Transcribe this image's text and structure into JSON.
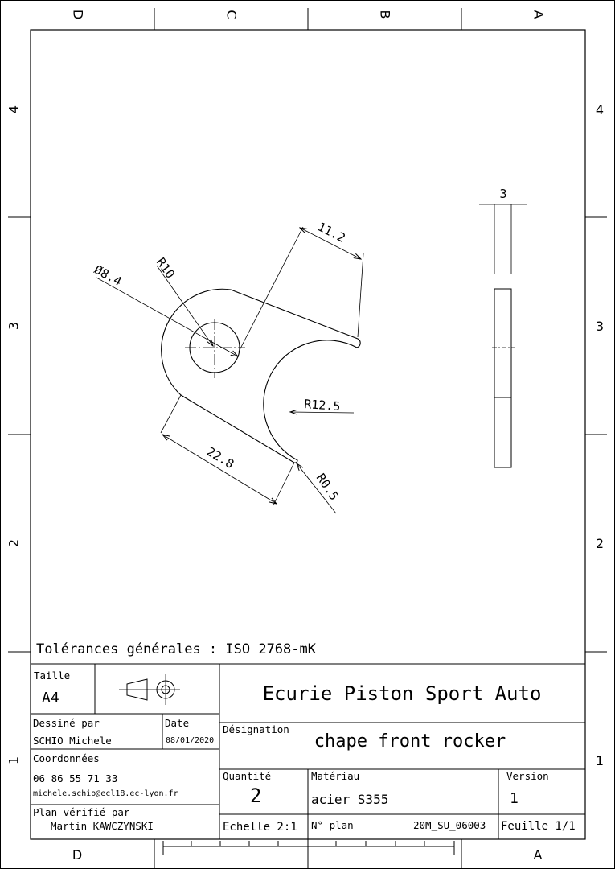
{
  "zones": {
    "columns_top": [
      "D",
      "C",
      "B",
      "A"
    ],
    "rows": [
      "4",
      "3",
      "2",
      "1"
    ],
    "columns_bottom": [
      "D",
      "A"
    ]
  },
  "dimensions": {
    "diameter": "Ø8.4",
    "radius_top": "R10",
    "width_top": "11.2",
    "radius_arc": "R12.5",
    "length_bottom": "22.8",
    "radius_corner": "R0.5",
    "thickness": "3"
  },
  "tolerances": "Tolérances générales : ISO 2768-mK",
  "title_block": {
    "size_label": "Taille",
    "size_value": "A4",
    "company": "Ecurie Piston Sport Auto",
    "drawn_by_label": "Dessiné par",
    "drawn_by": "SCHIO Michele",
    "date_label": "Date",
    "date": "08/01/2020",
    "contact_label": "Coordonnées",
    "phone": "06 86 55 71 33",
    "email": "michele.schio@ecl18.ec-lyon.fr",
    "checked_label": "Plan vérifié par",
    "checked_by": "Martin KAWCZYNSKI",
    "designation_label": "Désignation",
    "designation": "chape front rocker",
    "quantity_label": "Quantité",
    "quantity": "2",
    "material_label": "Matériau",
    "material": "acier S355",
    "version_label": "Version",
    "version": "1",
    "scale": "Echelle 2:1",
    "plan_label": "N° plan",
    "plan_number": "20M_SU_06003",
    "sheet": "Feuille 1/1"
  }
}
